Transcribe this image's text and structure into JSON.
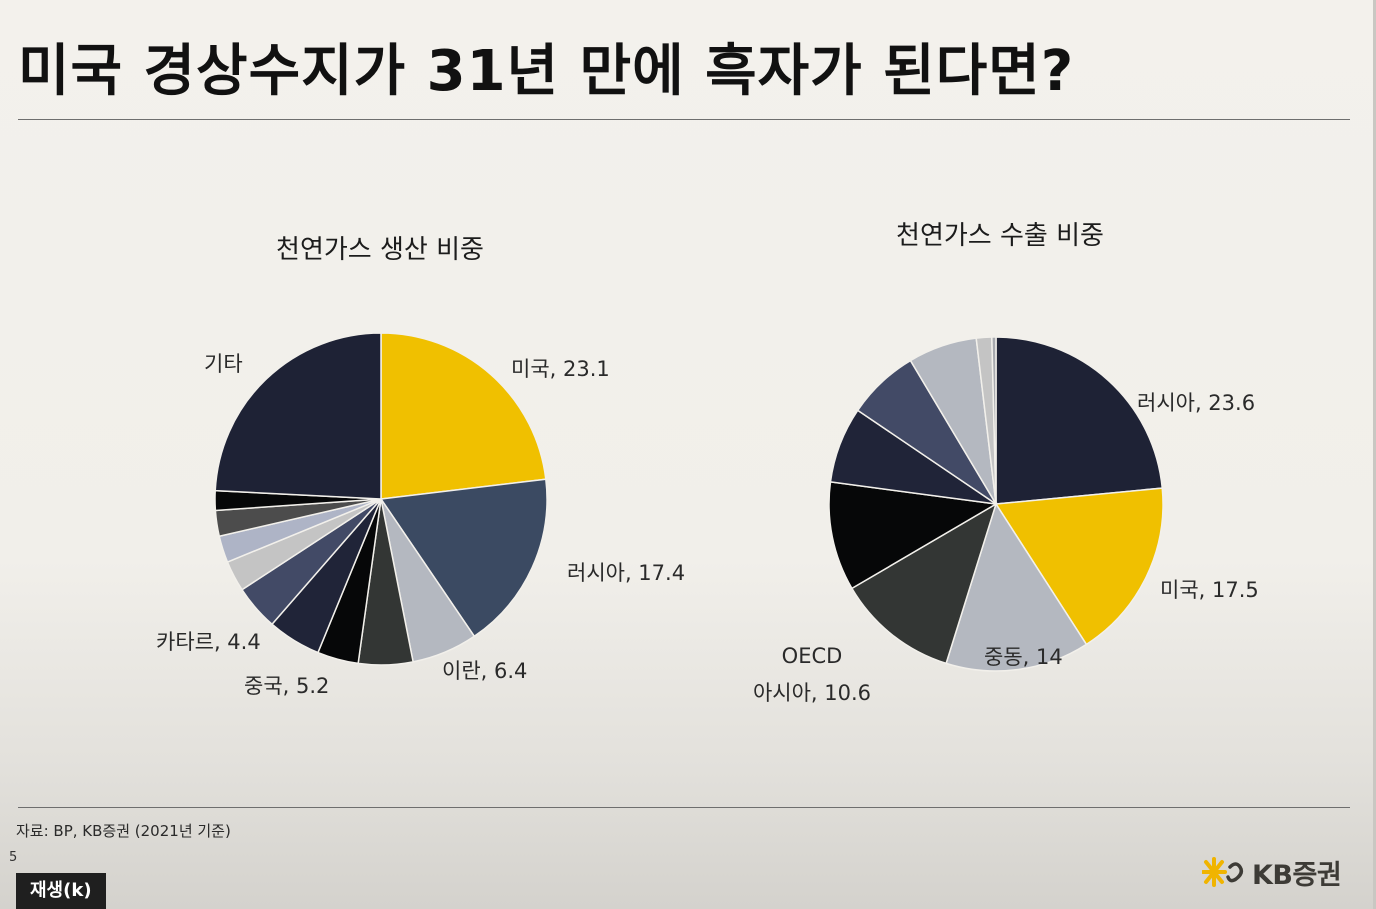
{
  "slide": {
    "title": "미국 경상수지가 31년 만에 흑자가 된다면?",
    "source": "자료: BP, KB증권 (2021년 기준)",
    "page_number": "5",
    "brand": "KB증권",
    "play_button_label": "재생(k)"
  },
  "colors": {
    "yellow": "#f0c000",
    "navy": "#1e2235",
    "slate": "#3b4a62",
    "silver": "#b4b8c0",
    "charcoal": "#333634",
    "black": "#060708",
    "dark_navy": "#202438",
    "blue_gray": "#424a66",
    "light_gray": "#c4c4c4",
    "pale_blue": "#aeb4c6",
    "mid_gray": "#4c4c4c",
    "gray": "#a7a9ae"
  },
  "chart_data": [
    {
      "type": "pie",
      "title": "천연가스 생산 비중",
      "slices": [
        {
          "label": "미국, 23.1",
          "value": 23.1,
          "color": "yellow"
        },
        {
          "label": "러시아, 17.4",
          "value": 17.4,
          "color": "slate"
        },
        {
          "label": "이란, 6.4",
          "value": 6.4,
          "color": "silver"
        },
        {
          "label": "",
          "value": 5.3,
          "color": "charcoal"
        },
        {
          "label": "",
          "value": 4.0,
          "color": "black"
        },
        {
          "label": "중국, 5.2",
          "value": 5.2,
          "color": "dark_navy"
        },
        {
          "label": "카타르, 4.4",
          "value": 4.4,
          "color": "blue_gray"
        },
        {
          "label": "",
          "value": 3.0,
          "color": "light_gray"
        },
        {
          "label": "",
          "value": 2.6,
          "color": "pale_blue"
        },
        {
          "label": "",
          "value": 2.5,
          "color": "mid_gray"
        },
        {
          "label": "",
          "value": 1.9,
          "color": "black"
        },
        {
          "label": "기타",
          "value": 24.2,
          "color": "navy"
        }
      ]
    },
    {
      "type": "pie",
      "title": "천연가스 수출 비중",
      "slices": [
        {
          "label": "러시아, 23.6",
          "value": 23.6,
          "color": "navy"
        },
        {
          "label": "미국, 17.5",
          "value": 17.5,
          "color": "yellow"
        },
        {
          "label": "중동, 14",
          "value": 14.0,
          "color": "silver"
        },
        {
          "label": "",
          "value": 11.8,
          "color": "charcoal"
        },
        {
          "label": "OECD\n아시아, 10.6",
          "value": 10.6,
          "color": "black"
        },
        {
          "label": "",
          "value": 7.4,
          "color": "dark_navy"
        },
        {
          "label": "",
          "value": 7.0,
          "color": "blue_gray"
        },
        {
          "label": "",
          "value": 6.7,
          "color": "silver"
        },
        {
          "label": "",
          "value": 1.5,
          "color": "light_gray"
        },
        {
          "label": "",
          "value": 0.4,
          "color": "gray"
        }
      ]
    }
  ]
}
